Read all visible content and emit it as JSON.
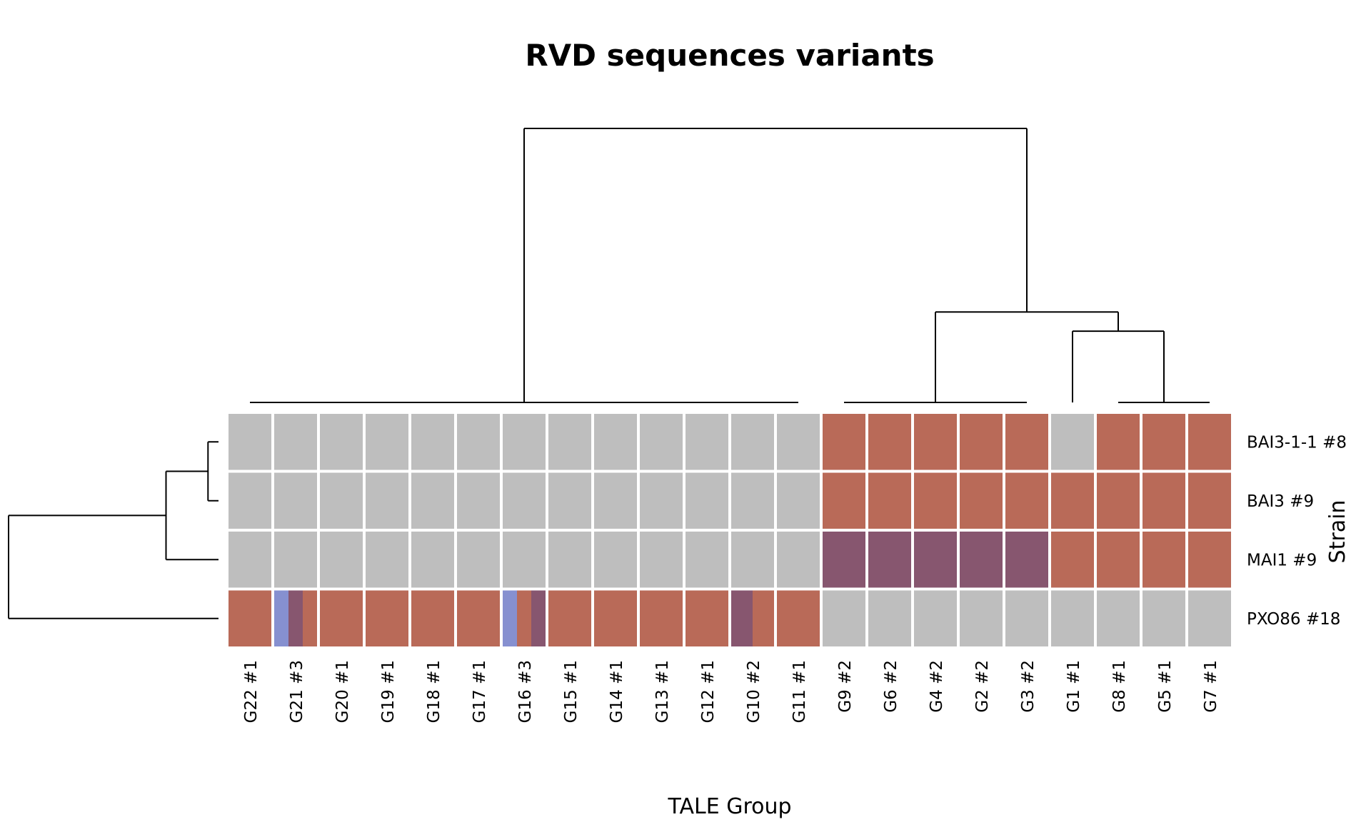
{
  "chart_data": {
    "type": "heatmap",
    "title": "RVD sequences variants",
    "xlabel": "TALE Group",
    "ylabel": "Strain",
    "columns": [
      "G22 #1",
      "G21 #3",
      "G20 #1",
      "G19 #1",
      "G18 #1",
      "G17 #1",
      "G16 #3",
      "G15 #1",
      "G14 #1",
      "G13 #1",
      "G12 #1",
      "G10 #2",
      "G11 #1",
      "G9 #2",
      "G6 #2",
      "G4 #2",
      "G2 #2",
      "G3 #2",
      "G1 #1",
      "G8 #1",
      "G5 #1",
      "G7 #1"
    ],
    "rows": [
      "BAI3-1-1  #8",
      "BAI3  #9",
      "MAI1  #9",
      "PXO86  #18"
    ],
    "colors": {
      "absent": "#bebebe",
      "variant_a": "#b96a58",
      "variant_b": "#87566f",
      "variant_c": "#8690d0"
    },
    "cells": [
      [
        [
          "absent"
        ],
        [
          "absent"
        ],
        [
          "absent"
        ],
        [
          "absent"
        ],
        [
          "absent"
        ],
        [
          "absent"
        ],
        [
          "absent"
        ],
        [
          "absent"
        ],
        [
          "absent"
        ],
        [
          "absent"
        ],
        [
          "absent"
        ],
        [
          "absent"
        ],
        [
          "absent"
        ],
        [
          "variant_a"
        ],
        [
          "variant_a"
        ],
        [
          "variant_a"
        ],
        [
          "variant_a"
        ],
        [
          "variant_a"
        ],
        [
          "absent"
        ],
        [
          "variant_a"
        ],
        [
          "variant_a"
        ],
        [
          "variant_a"
        ]
      ],
      [
        [
          "absent"
        ],
        [
          "absent"
        ],
        [
          "absent"
        ],
        [
          "absent"
        ],
        [
          "absent"
        ],
        [
          "absent"
        ],
        [
          "absent"
        ],
        [
          "absent"
        ],
        [
          "absent"
        ],
        [
          "absent"
        ],
        [
          "absent"
        ],
        [
          "absent"
        ],
        [
          "absent"
        ],
        [
          "variant_a"
        ],
        [
          "variant_a"
        ],
        [
          "variant_a"
        ],
        [
          "variant_a"
        ],
        [
          "variant_a"
        ],
        [
          "variant_a"
        ],
        [
          "variant_a"
        ],
        [
          "variant_a"
        ],
        [
          "variant_a"
        ]
      ],
      [
        [
          "absent"
        ],
        [
          "absent"
        ],
        [
          "absent"
        ],
        [
          "absent"
        ],
        [
          "absent"
        ],
        [
          "absent"
        ],
        [
          "absent"
        ],
        [
          "absent"
        ],
        [
          "absent"
        ],
        [
          "absent"
        ],
        [
          "absent"
        ],
        [
          "absent"
        ],
        [
          "absent"
        ],
        [
          "variant_b"
        ],
        [
          "variant_b"
        ],
        [
          "variant_b"
        ],
        [
          "variant_b"
        ],
        [
          "variant_b"
        ],
        [
          "variant_a"
        ],
        [
          "variant_a"
        ],
        [
          "variant_a"
        ],
        [
          "variant_a"
        ]
      ],
      [
        [
          "variant_a"
        ],
        [
          "variant_c",
          "variant_b",
          "variant_a"
        ],
        [
          "variant_a"
        ],
        [
          "variant_a"
        ],
        [
          "variant_a"
        ],
        [
          "variant_a"
        ],
        [
          "variant_c",
          "variant_a",
          "variant_b"
        ],
        [
          "variant_a"
        ],
        [
          "variant_a"
        ],
        [
          "variant_a"
        ],
        [
          "variant_a"
        ],
        [
          "variant_b",
          "variant_a"
        ],
        [
          "variant_a"
        ],
        [
          "absent"
        ],
        [
          "absent"
        ],
        [
          "absent"
        ],
        [
          "absent"
        ],
        [
          "absent"
        ],
        [
          "absent"
        ],
        [
          "absent"
        ],
        [
          "absent"
        ],
        [
          "absent"
        ]
      ]
    ],
    "column_dendrogram": {
      "groups": [
        {
          "members": [
            0,
            12
          ],
          "join_height": 0.0
        },
        {
          "members": [
            13,
            17
          ],
          "join_height": 0.0
        },
        {
          "members": [
            19,
            21
          ],
          "join_height": 0.0
        }
      ],
      "merges": [
        {
          "left": "G1 #1",
          "right": "cluster G8-G7",
          "height": 0.26
        },
        {
          "left": "cluster G9-G3",
          "right": "merge G1-G7",
          "height": 0.33
        },
        {
          "left": "cluster G22-G11",
          "right": "merge G9-G7",
          "height": 1.0
        }
      ]
    },
    "row_dendrogram": {
      "merges": [
        {
          "left": "BAI3-1-1  #8",
          "right": "BAI3  #9",
          "height": 0.05
        },
        {
          "left": "merge BAI3",
          "right": "MAI1  #9",
          "height": 0.25
        },
        {
          "left": "merge BAI3-MAI1",
          "right": "PXO86  #18",
          "height": 1.0
        }
      ]
    }
  }
}
